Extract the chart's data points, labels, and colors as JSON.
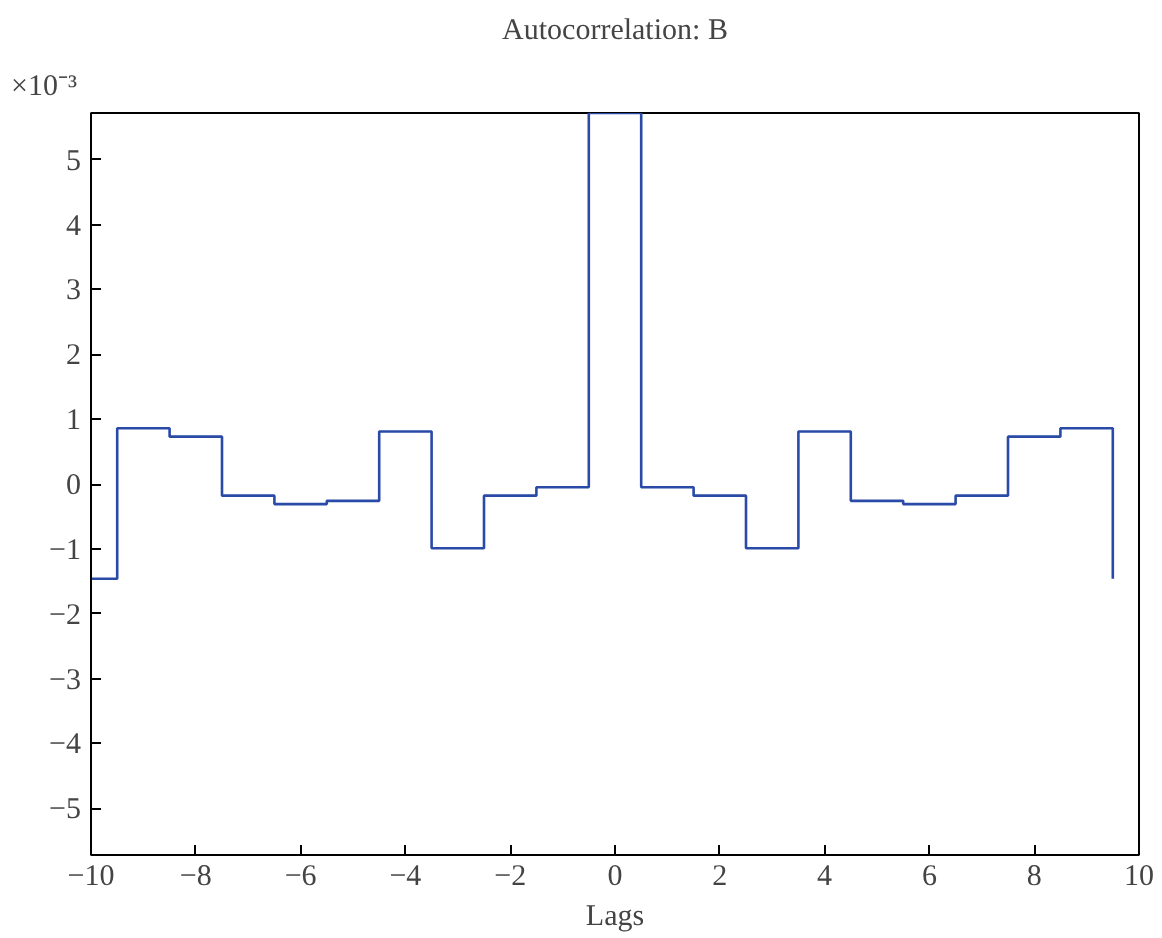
{
  "chart_data": {
    "type": "step",
    "title": "Autocorrelation: B",
    "xlabel": "Lags",
    "x": [
      -10,
      -9.5,
      -8.5,
      -7.5,
      -6.5,
      -5.5,
      -4.5,
      -3.5,
      -2.5,
      -1.5,
      -0.5,
      0.5,
      1.5,
      2.5,
      3.5,
      4.5,
      5.5,
      6.5,
      7.5,
      8.5,
      9.5
    ],
    "series": [
      {
        "color": "#2a4aa8",
        "values": [
          -1.46,
          0.86,
          0.73,
          -0.18,
          -0.31,
          -0.26,
          0.81,
          -0.99,
          -0.18,
          -0.05,
          5.72,
          -0.05,
          -0.18,
          -0.99,
          0.81,
          -0.26,
          -0.31,
          -0.18,
          0.73,
          0.86,
          -1.46
        ]
      }
    ],
    "xlim": [
      -10,
      10
    ],
    "ylim": [
      -5.72,
      5.72
    ],
    "xticks": [
      {
        "value": -10,
        "label": "−10"
      },
      {
        "value": -8,
        "label": "−8"
      },
      {
        "value": -6,
        "label": "−6"
      },
      {
        "value": -4,
        "label": "−4"
      },
      {
        "value": -2,
        "label": "−2"
      },
      0,
      2,
      4,
      6,
      8,
      10
    ],
    "yticks": [
      {
        "value": -5,
        "label": "−5"
      },
      {
        "value": -4,
        "label": "−4"
      },
      {
        "value": -3,
        "label": "−3"
      },
      {
        "value": -2,
        "label": "−2"
      },
      {
        "value": -1,
        "label": "−1"
      },
      0,
      1,
      2,
      3,
      4,
      5
    ],
    "annotations": [
      "×10⁻³"
    ],
    "grid": false
  }
}
